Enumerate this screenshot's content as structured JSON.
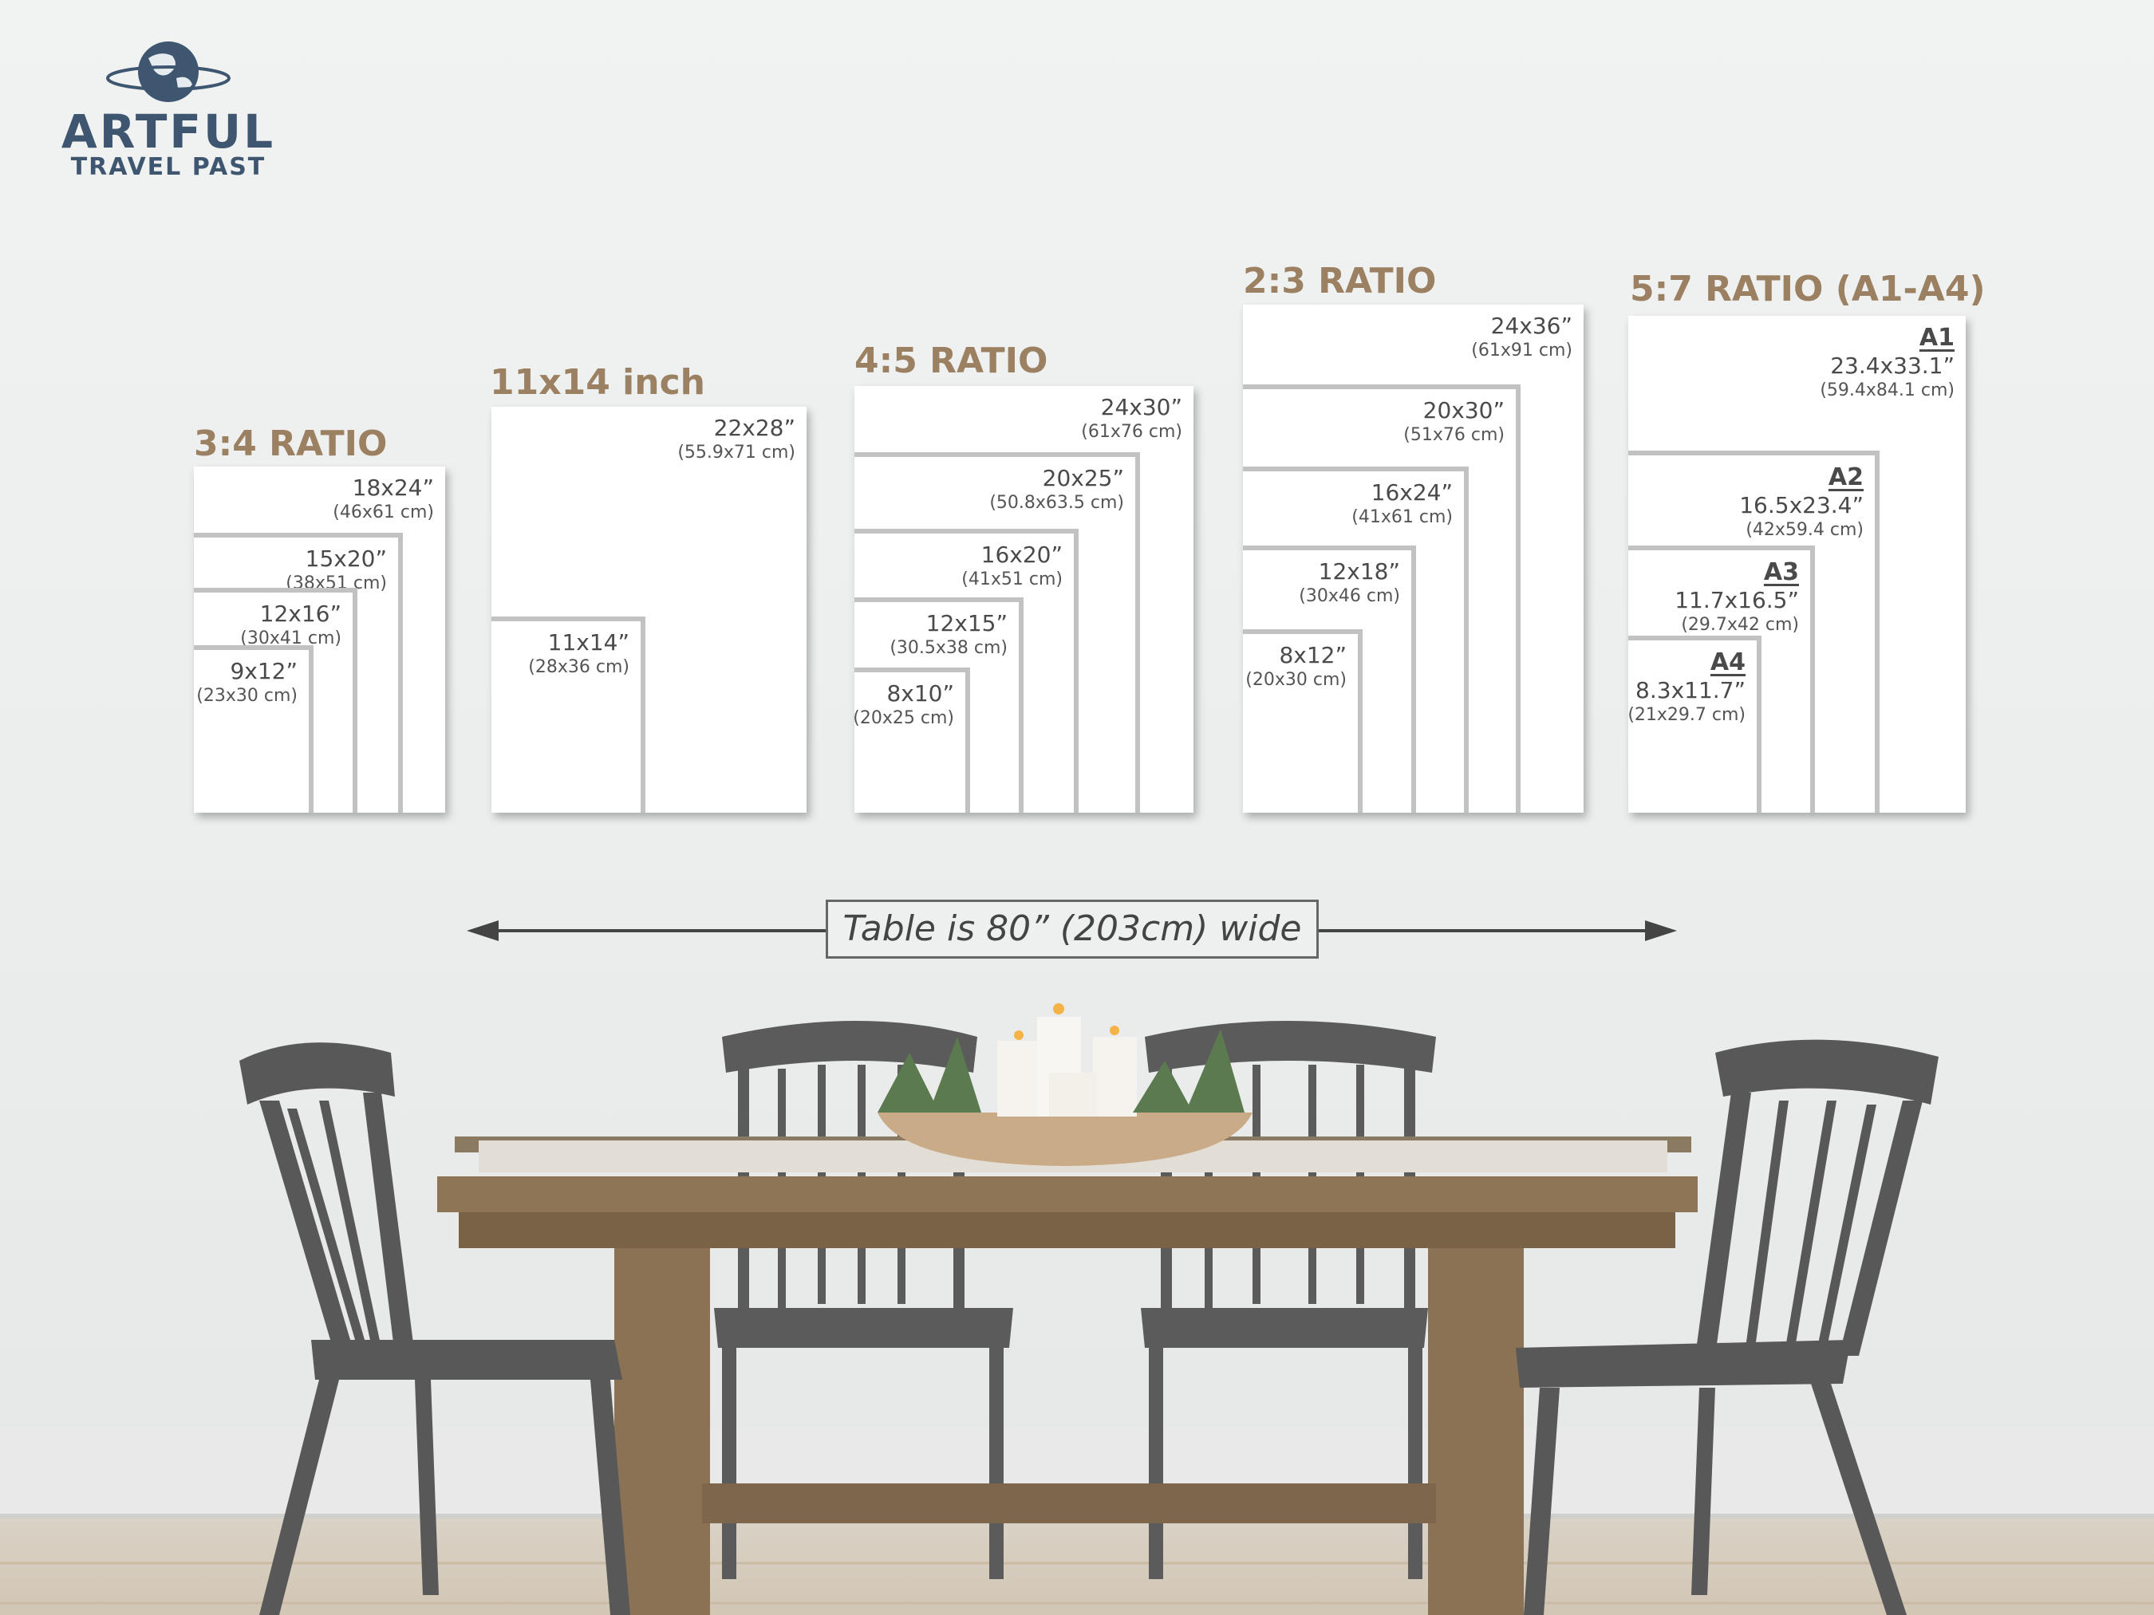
{
  "logo": {
    "line1": "ARTFUL",
    "line2": "TRAVEL PAST",
    "color": "#3f5670"
  },
  "accent_color": "#9c8062",
  "groups": [
    {
      "title": "3:4 RATIO",
      "sizes": [
        {
          "size": "18x24”",
          "cm": "(46x61 cm)"
        },
        {
          "size": "15x20”",
          "cm": "(38x51 cm)"
        },
        {
          "size": "12x16”",
          "cm": "(30x41 cm)"
        },
        {
          "size": "9x12”",
          "cm": "(23x30 cm)"
        }
      ]
    },
    {
      "title": "11x14 inch",
      "sizes": [
        {
          "size": "22x28”",
          "cm": "(55.9x71 cm)"
        },
        {
          "size": "11x14”",
          "cm": "(28x36 cm)"
        }
      ]
    },
    {
      "title": "4:5 RATIO",
      "sizes": [
        {
          "size": "24x30”",
          "cm": "(61x76 cm)"
        },
        {
          "size": "20x25”",
          "cm": "(50.8x63.5 cm)"
        },
        {
          "size": "16x20”",
          "cm": "(41x51 cm)"
        },
        {
          "size": "12x15”",
          "cm": "(30.5x38 cm)"
        },
        {
          "size": "8x10”",
          "cm": "(20x25 cm)"
        }
      ]
    },
    {
      "title": "2:3 RATIO",
      "sizes": [
        {
          "size": "24x36”",
          "cm": "(61x91 cm)"
        },
        {
          "size": "20x30”",
          "cm": "(51x76 cm)"
        },
        {
          "size": "16x24”",
          "cm": "(41x61 cm)"
        },
        {
          "size": "12x18”",
          "cm": "(30x46 cm)"
        },
        {
          "size": "8x12”",
          "cm": "(20x30 cm)"
        }
      ]
    },
    {
      "title": "5:7 RATIO (A1-A4)",
      "sizes": [
        {
          "iso": "A1",
          "size": "23.4x33.1”",
          "cm": "(59.4x84.1 cm)"
        },
        {
          "iso": "A2",
          "size": "16.5x23.4”",
          "cm": "(42x59.4 cm)"
        },
        {
          "iso": "A3",
          "size": "11.7x16.5”",
          "cm": "(29.7x42 cm)"
        },
        {
          "iso": "A4",
          "size": "8.3x11.7”",
          "cm": "(21x29.7 cm)"
        }
      ]
    }
  ],
  "table_note": "Table is 80” (203cm) wide"
}
